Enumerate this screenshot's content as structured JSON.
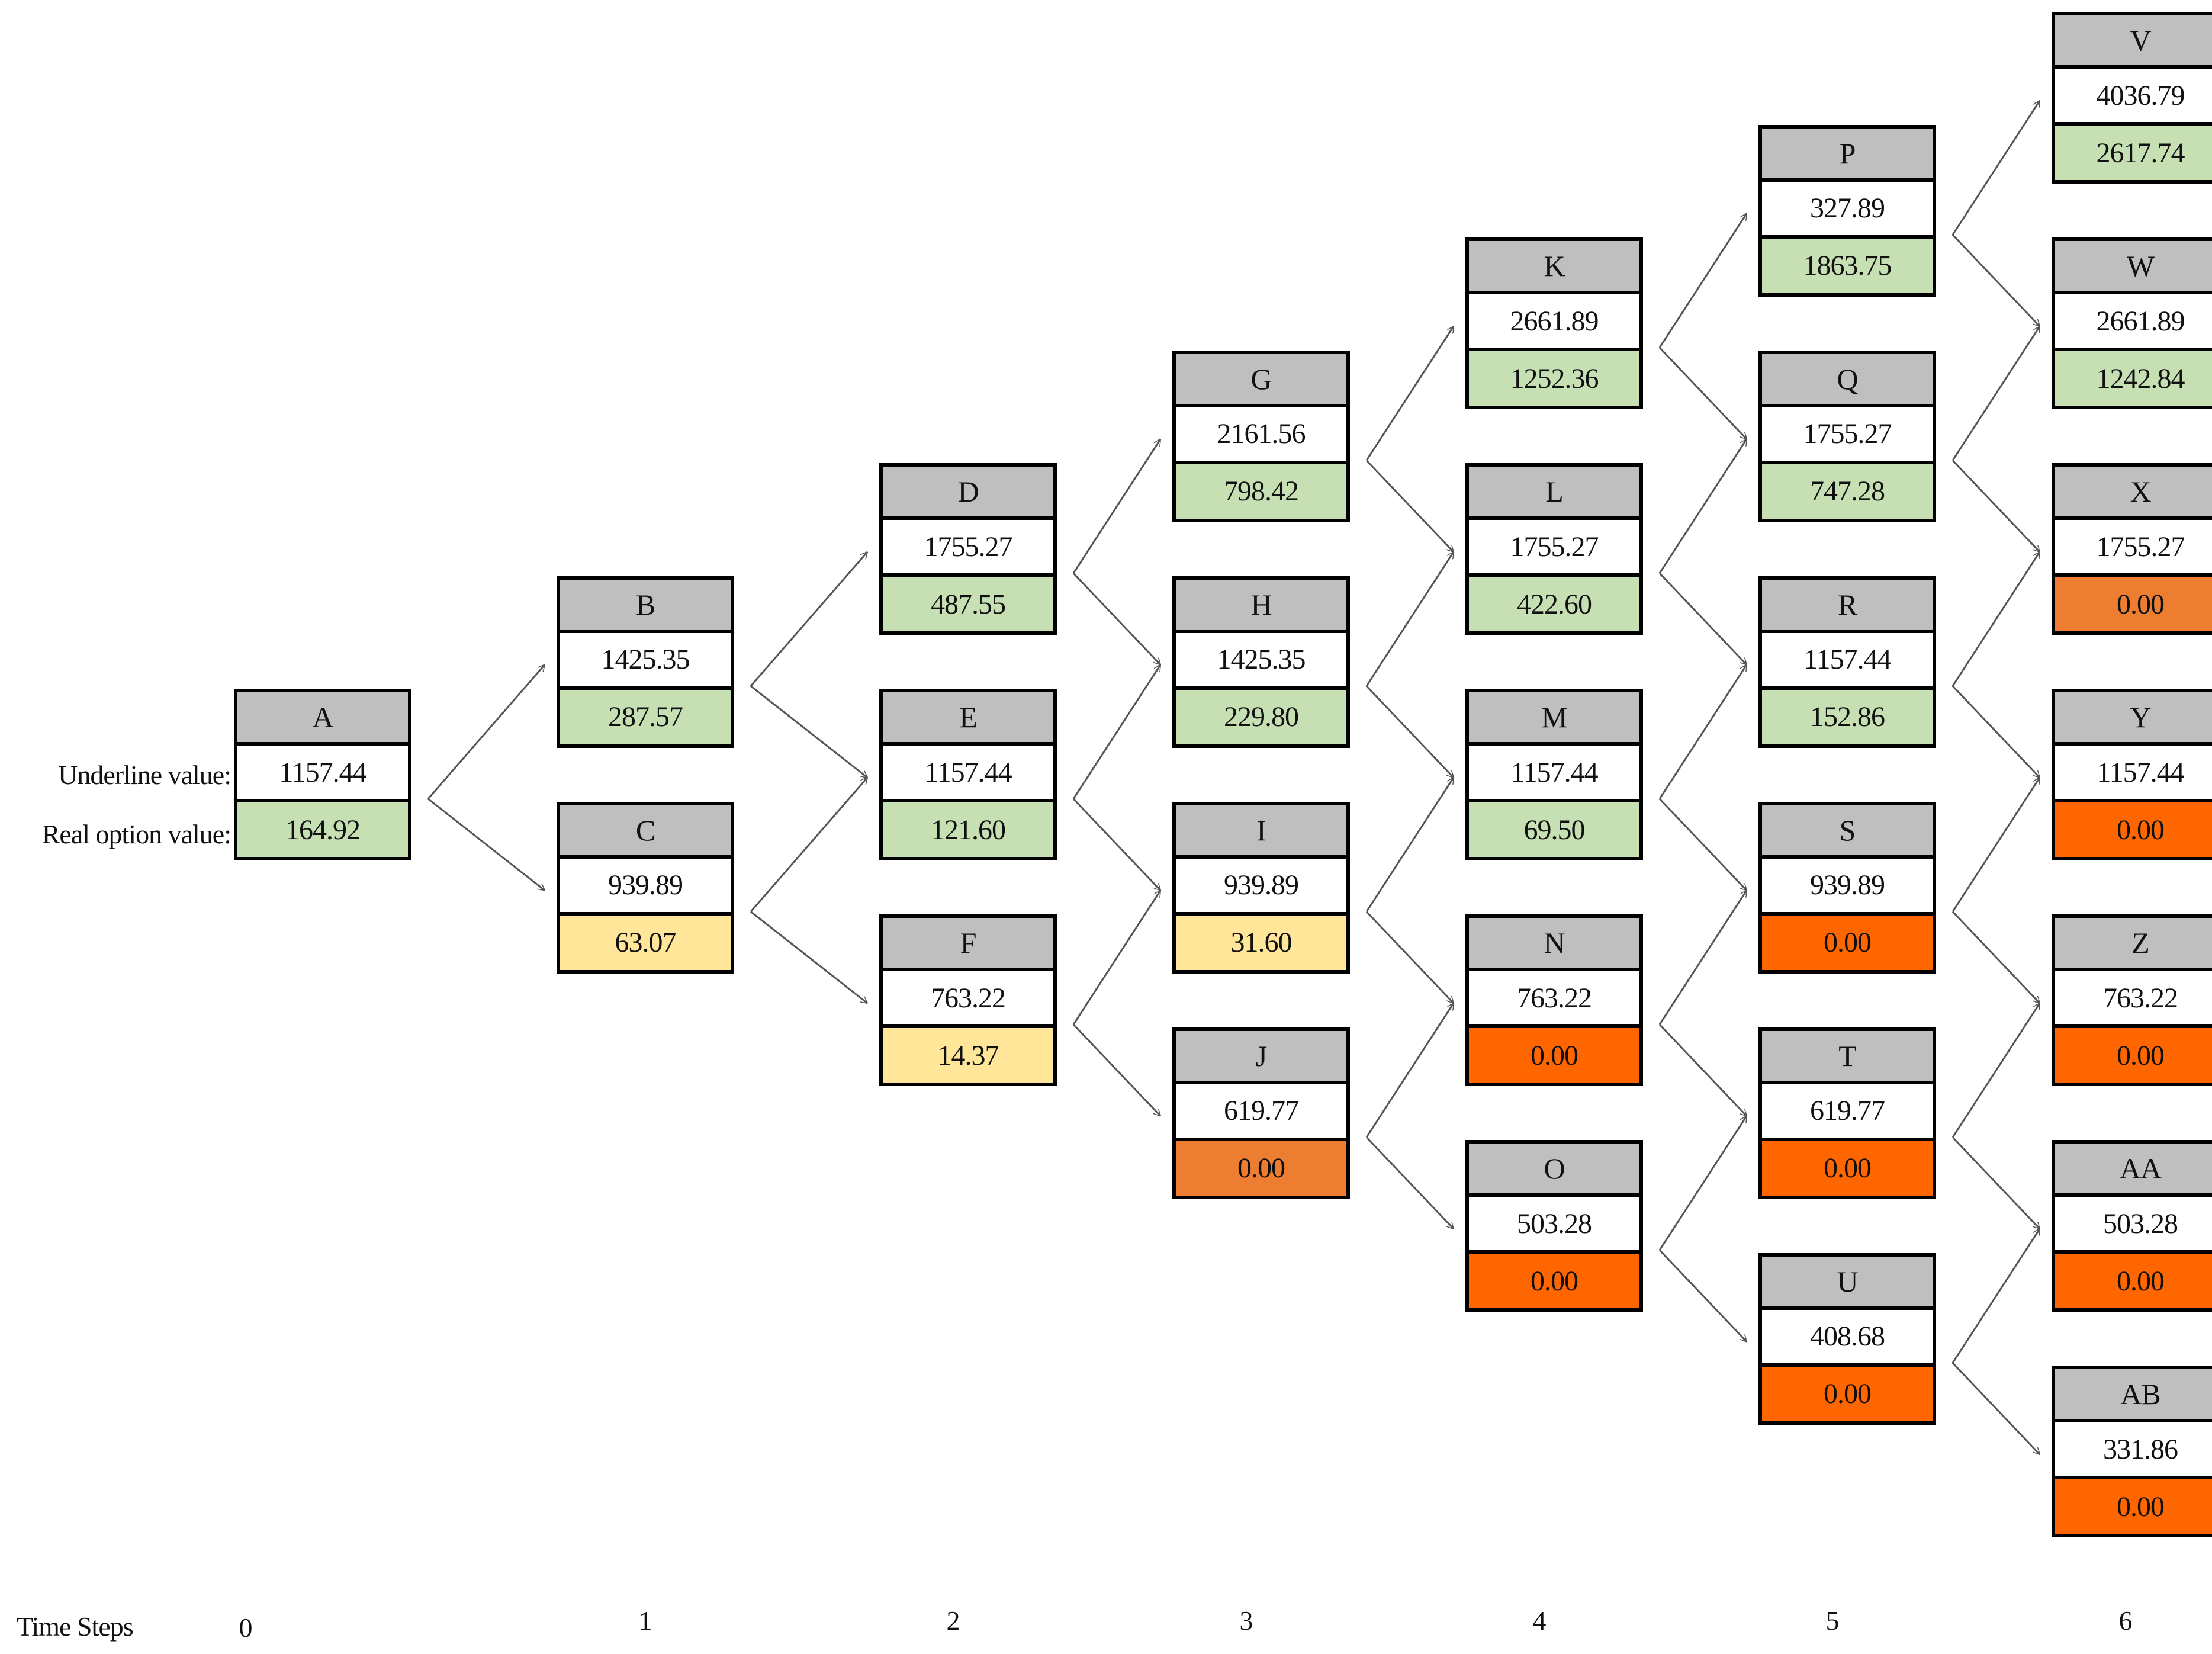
{
  "labels": {
    "underline": "Underline value:",
    "real_option": "Real option value:",
    "time_steps": "Time Steps"
  },
  "time_steps": [
    "0",
    "1",
    "2",
    "3",
    "4",
    "5",
    "6"
  ],
  "colors": {
    "green": "#c6e0b4",
    "yellow": "#ffe699",
    "orange_light": "#ed7d31",
    "orange": "#ff6600",
    "header": "#bfbfbf"
  },
  "nodes": [
    {
      "id": "A",
      "step": 0,
      "pos": 3,
      "underline": "1157.44",
      "real": "164.92",
      "color": "green"
    },
    {
      "id": "B",
      "step": 1,
      "pos": 2.5,
      "underline": "1425.35",
      "real": "287.57",
      "color": "green"
    },
    {
      "id": "C",
      "step": 1,
      "pos": 3.5,
      "underline": "939.89",
      "real": "63.07",
      "color": "yellow"
    },
    {
      "id": "D",
      "step": 2,
      "pos": 2,
      "underline": "1755.27",
      "real": "487.55",
      "color": "green"
    },
    {
      "id": "E",
      "step": 2,
      "pos": 3,
      "underline": "1157.44",
      "real": "121.60",
      "color": "green"
    },
    {
      "id": "F",
      "step": 2,
      "pos": 4,
      "underline": "763.22",
      "real": "14.37",
      "color": "yellow"
    },
    {
      "id": "G",
      "step": 3,
      "pos": 1.5,
      "underline": "2161.56",
      "real": "798.42",
      "color": "green"
    },
    {
      "id": "H",
      "step": 3,
      "pos": 2.5,
      "underline": "1425.35",
      "real": "229.80",
      "color": "green"
    },
    {
      "id": "I",
      "step": 3,
      "pos": 3.5,
      "underline": "939.89",
      "real": "31.60",
      "color": "yellow"
    },
    {
      "id": "J",
      "step": 3,
      "pos": 4.5,
      "underline": "619.77",
      "real": "0.00",
      "color": "orange_light"
    },
    {
      "id": "K",
      "step": 4,
      "pos": 1,
      "underline": "2661.89",
      "real": "1252.36",
      "color": "green"
    },
    {
      "id": "L",
      "step": 4,
      "pos": 2,
      "underline": "1755.27",
      "real": "422.60",
      "color": "green"
    },
    {
      "id": "M",
      "step": 4,
      "pos": 3,
      "underline": "1157.44",
      "real": "69.50",
      "color": "green"
    },
    {
      "id": "N",
      "step": 4,
      "pos": 4,
      "underline": "763.22",
      "real": "0.00",
      "color": "orange"
    },
    {
      "id": "O",
      "step": 4,
      "pos": 5,
      "underline": "503.28",
      "real": "0.00",
      "color": "orange"
    },
    {
      "id": "P",
      "step": 5,
      "pos": 0.5,
      "underline": "327.89",
      "real": "1863.75",
      "color": "green"
    },
    {
      "id": "Q",
      "step": 5,
      "pos": 1.5,
      "underline": "1755.27",
      "real": "747.28",
      "color": "green"
    },
    {
      "id": "R",
      "step": 5,
      "pos": 2.5,
      "underline": "1157.44",
      "real": "152.86",
      "color": "green"
    },
    {
      "id": "S",
      "step": 5,
      "pos": 3.5,
      "underline": "939.89",
      "real": "0.00",
      "color": "orange"
    },
    {
      "id": "T",
      "step": 5,
      "pos": 4.5,
      "underline": "619.77",
      "real": "0.00",
      "color": "orange"
    },
    {
      "id": "U",
      "step": 5,
      "pos": 5.5,
      "underline": "408.68",
      "real": "0.00",
      "color": "orange"
    },
    {
      "id": "V",
      "step": 6,
      "pos": 0,
      "underline": "4036.79",
      "real": "2617.74",
      "color": "green"
    },
    {
      "id": "W",
      "step": 6,
      "pos": 1,
      "underline": "2661.89",
      "real": "1242.84",
      "color": "green"
    },
    {
      "id": "X",
      "step": 6,
      "pos": 2,
      "underline": "1755.27",
      "real": "0.00",
      "color": "orange_light"
    },
    {
      "id": "Y",
      "step": 6,
      "pos": 3,
      "underline": "1157.44",
      "real": "0.00",
      "color": "orange"
    },
    {
      "id": "Z",
      "step": 6,
      "pos": 4,
      "underline": "763.22",
      "real": "0.00",
      "color": "orange"
    },
    {
      "id": "AA",
      "step": 6,
      "pos": 5,
      "underline": "503.28",
      "real": "0.00",
      "color": "orange"
    },
    {
      "id": "AB",
      "step": 6,
      "pos": 6,
      "underline": "331.86",
      "real": "0.00",
      "color": "orange"
    }
  ],
  "edges": [
    [
      "A",
      "B"
    ],
    [
      "A",
      "C"
    ],
    [
      "B",
      "D"
    ],
    [
      "B",
      "E"
    ],
    [
      "C",
      "E"
    ],
    [
      "C",
      "F"
    ],
    [
      "D",
      "G"
    ],
    [
      "D",
      "H"
    ],
    [
      "E",
      "H"
    ],
    [
      "E",
      "I"
    ],
    [
      "F",
      "I"
    ],
    [
      "F",
      "J"
    ],
    [
      "G",
      "K"
    ],
    [
      "G",
      "L"
    ],
    [
      "H",
      "L"
    ],
    [
      "H",
      "M"
    ],
    [
      "I",
      "M"
    ],
    [
      "I",
      "N"
    ],
    [
      "J",
      "N"
    ],
    [
      "J",
      "O"
    ],
    [
      "K",
      "P"
    ],
    [
      "K",
      "Q"
    ],
    [
      "L",
      "Q"
    ],
    [
      "L",
      "R"
    ],
    [
      "M",
      "R"
    ],
    [
      "M",
      "S"
    ],
    [
      "N",
      "S"
    ],
    [
      "N",
      "T"
    ],
    [
      "O",
      "T"
    ],
    [
      "O",
      "U"
    ],
    [
      "P",
      "V"
    ],
    [
      "P",
      "W"
    ],
    [
      "Q",
      "W"
    ],
    [
      "Q",
      "X"
    ],
    [
      "R",
      "X"
    ],
    [
      "R",
      "Y"
    ],
    [
      "S",
      "Y"
    ],
    [
      "S",
      "Z"
    ],
    [
      "T",
      "Z"
    ],
    [
      "T",
      "AA"
    ],
    [
      "U",
      "AA"
    ],
    [
      "U",
      "AB"
    ]
  ]
}
